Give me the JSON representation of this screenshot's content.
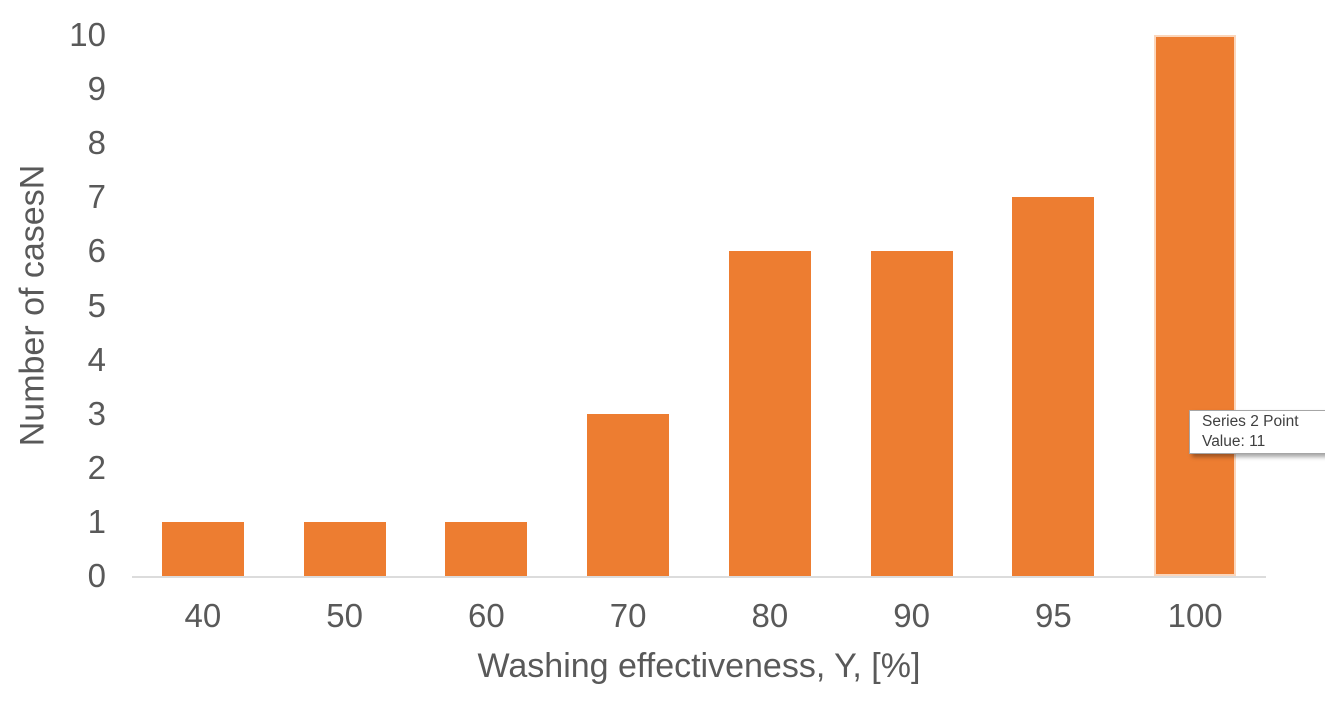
{
  "chart_data": {
    "type": "bar",
    "title": "",
    "categories": [
      "40",
      "50",
      "60",
      "70",
      "80",
      "90",
      "95",
      "100"
    ],
    "series": [
      {
        "name": "Series 2",
        "values": [
          1,
          1,
          1,
          3,
          6,
          6,
          7,
          11
        ]
      }
    ],
    "xlabel": "Washing effectiveness, Y, [%]",
    "ylabel": "Number of casesN",
    "ylim": [
      0,
      10
    ],
    "y_ticks": [
      0,
      1,
      2,
      3,
      4,
      5,
      6,
      7,
      8,
      9,
      10
    ],
    "grid": "off",
    "legend": "none",
    "bar_color": "#ED7D31",
    "axis_text_color": "#595959",
    "axis_line_color": "#DCDCDC",
    "hovered_index": 7,
    "note_clipping": "Last bar value 11 exceeds axis max 10 and is clipped at plot top"
  },
  "tooltip": {
    "line1": "Series 2 Point",
    "line2": "Value: 11"
  }
}
